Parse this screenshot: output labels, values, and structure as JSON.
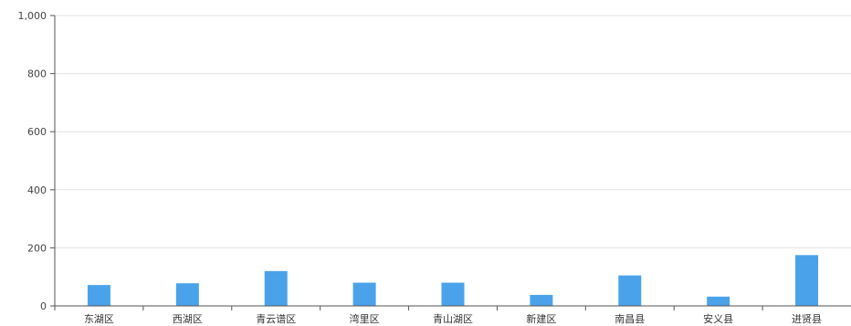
{
  "chart_data": {
    "type": "bar",
    "title": "",
    "xlabel": "",
    "ylabel": "",
    "categories": [
      "东湖区",
      "西湖区",
      "青云谱区",
      "湾里区",
      "青山湖区",
      "新建区",
      "南昌县",
      "安义县",
      "进贤县"
    ],
    "values": [
      72,
      78,
      120,
      80,
      80,
      38,
      105,
      32,
      175
    ],
    "ylim": [
      0,
      1000
    ],
    "yticks": [
      0,
      200,
      400,
      600,
      800,
      1000
    ],
    "ytick_labels": [
      "0",
      "200",
      "400",
      "600",
      "800",
      "1,000"
    ],
    "grid": true,
    "legend": "none",
    "colors": {
      "bar": "#4aa3ea",
      "grid": "#e3e3e3",
      "axis": "#555555"
    }
  }
}
